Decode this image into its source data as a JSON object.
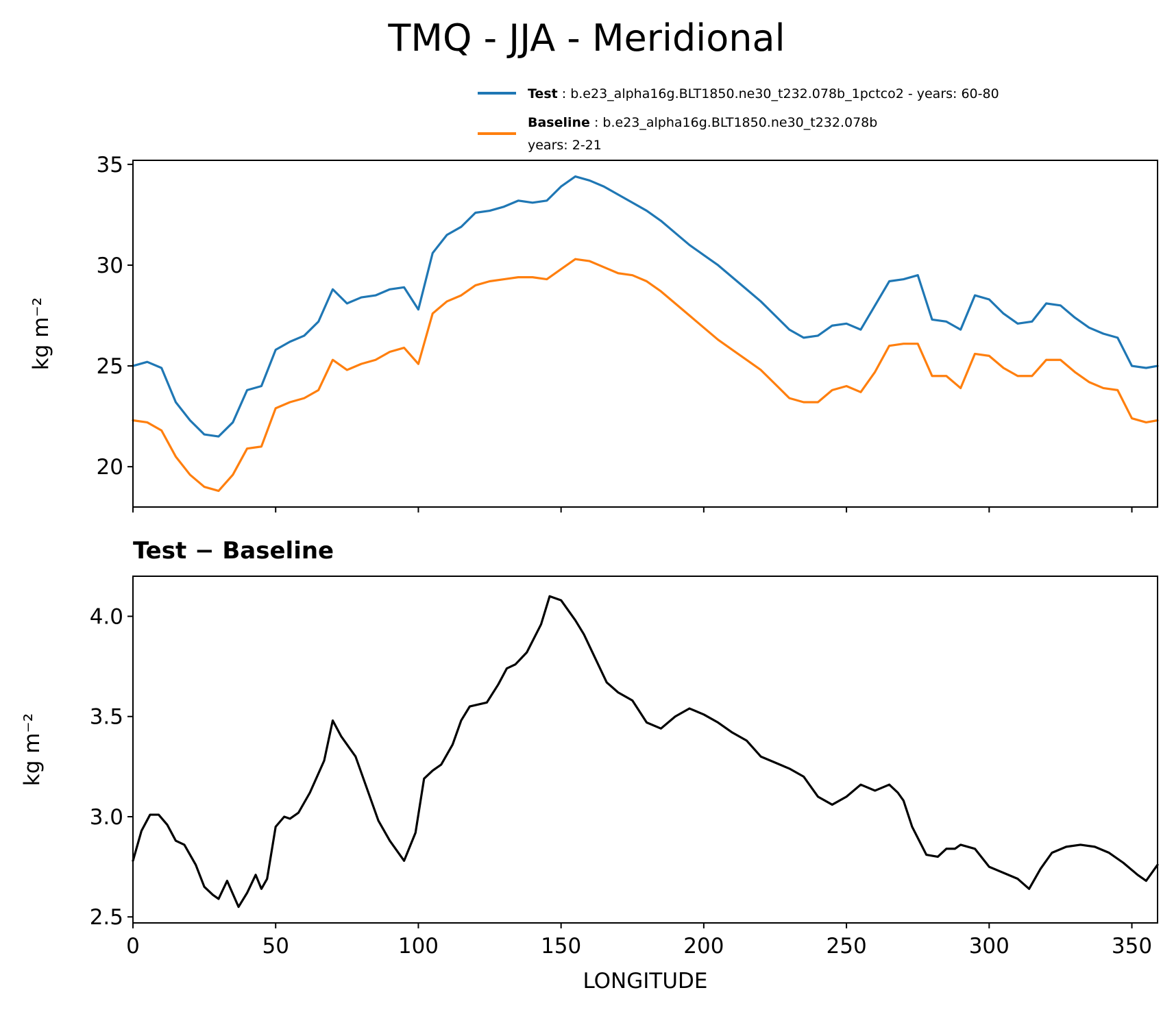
{
  "chart_data": [
    {
      "type": "line",
      "title": "TMQ - JJA - Meridional",
      "ylabel": "kg m⁻²",
      "xlim": [
        0,
        359
      ],
      "ylim": [
        18,
        35.2
      ],
      "yticks": [
        20,
        25,
        30,
        35
      ],
      "xticks": [
        0,
        50,
        100,
        150,
        200,
        250,
        300,
        350
      ],
      "x": [
        0,
        5,
        10,
        15,
        20,
        25,
        30,
        35,
        40,
        45,
        50,
        55,
        60,
        65,
        70,
        75,
        80,
        85,
        90,
        95,
        100,
        105,
        110,
        115,
        120,
        125,
        130,
        135,
        140,
        145,
        150,
        155,
        160,
        165,
        170,
        175,
        180,
        185,
        190,
        195,
        200,
        205,
        210,
        215,
        220,
        225,
        230,
        235,
        240,
        245,
        250,
        255,
        260,
        265,
        270,
        275,
        280,
        285,
        290,
        295,
        300,
        305,
        310,
        315,
        320,
        325,
        330,
        335,
        340,
        345,
        350,
        355,
        359
      ],
      "series": [
        {
          "name": "Test",
          "legend_label": "b.e23_alpha16g.BLT1850.ne30_t232.078b_1pctco2 - years: 60-80",
          "color": "#1f77b4",
          "values": [
            25.0,
            25.2,
            24.9,
            23.2,
            22.3,
            21.6,
            21.5,
            22.2,
            23.8,
            24.0,
            25.8,
            26.2,
            26.5,
            27.2,
            28.8,
            28.1,
            28.4,
            28.5,
            28.8,
            28.9,
            27.8,
            30.6,
            31.5,
            31.9,
            32.6,
            32.7,
            32.9,
            33.2,
            33.1,
            33.2,
            33.9,
            34.4,
            34.2,
            33.9,
            33.5,
            33.1,
            32.7,
            32.2,
            31.6,
            31.0,
            30.5,
            30.0,
            29.4,
            28.8,
            28.2,
            27.5,
            26.8,
            26.4,
            26.5,
            27.0,
            27.1,
            26.8,
            28.0,
            29.2,
            29.3,
            29.5,
            27.3,
            27.2,
            26.8,
            28.5,
            28.3,
            27.6,
            27.1,
            27.2,
            28.1,
            28.0,
            27.4,
            26.9,
            26.6,
            26.4,
            25.0,
            24.9,
            25.0
          ]
        },
        {
          "name": "Baseline",
          "legend_label": "b.e23_alpha16g.BLT1850.ne30_t232.078b",
          "legend_sublabel": "years: 2-21",
          "color": "#ff7f0e",
          "values": [
            22.3,
            22.2,
            21.8,
            20.5,
            19.6,
            19.0,
            18.8,
            19.6,
            20.9,
            21.0,
            22.9,
            23.2,
            23.4,
            23.8,
            25.3,
            24.8,
            25.1,
            25.3,
            25.7,
            25.9,
            25.1,
            27.6,
            28.2,
            28.5,
            29.0,
            29.2,
            29.3,
            29.4,
            29.4,
            29.3,
            29.8,
            30.3,
            30.2,
            29.9,
            29.6,
            29.5,
            29.2,
            28.7,
            28.1,
            27.5,
            26.9,
            26.3,
            25.8,
            25.3,
            24.8,
            24.1,
            23.4,
            23.2,
            23.2,
            23.8,
            24.0,
            23.7,
            24.7,
            26.0,
            26.1,
            26.1,
            24.5,
            24.5,
            23.9,
            25.6,
            25.5,
            24.9,
            24.5,
            24.5,
            25.3,
            25.3,
            24.7,
            24.2,
            23.9,
            23.8,
            22.4,
            22.2,
            22.3
          ]
        }
      ]
    },
    {
      "type": "line",
      "title": "Test − Baseline",
      "ylabel": "kg m⁻²",
      "xlabel": "LONGITUDE",
      "xlim": [
        0,
        359
      ],
      "ylim": [
        2.47,
        4.2
      ],
      "yticks": [
        "2.5",
        "3.0",
        "3.5",
        "4.0"
      ],
      "ytick_values": [
        2.5,
        3.0,
        3.5,
        4.0
      ],
      "xticks": [
        0,
        50,
        100,
        150,
        200,
        250,
        300,
        350
      ],
      "x": [
        0,
        3,
        6,
        9,
        12,
        15,
        18,
        22,
        25,
        28,
        30,
        33,
        37,
        40,
        43,
        45,
        47,
        50,
        53,
        55,
        58,
        62,
        67,
        70,
        73,
        76,
        78,
        80,
        83,
        86,
        90,
        95,
        99,
        102,
        105,
        108,
        112,
        115,
        118,
        121,
        124,
        128,
        131,
        134,
        138,
        143,
        146,
        150,
        155,
        158,
        162,
        166,
        170,
        175,
        180,
        185,
        190,
        195,
        200,
        205,
        210,
        215,
        220,
        225,
        230,
        235,
        240,
        245,
        250,
        255,
        260,
        265,
        268,
        270,
        273,
        278,
        282,
        285,
        288,
        290,
        295,
        300,
        305,
        310,
        314,
        318,
        322,
        327,
        332,
        337,
        342,
        347,
        352,
        355,
        359
      ],
      "series": [
        {
          "name": "Test − Baseline",
          "color": "#000000",
          "values": [
            2.78,
            2.93,
            3.01,
            3.01,
            2.96,
            2.88,
            2.86,
            2.76,
            2.65,
            2.61,
            2.59,
            2.68,
            2.55,
            2.62,
            2.71,
            2.64,
            2.69,
            2.95,
            3.0,
            2.99,
            3.02,
            3.12,
            3.28,
            3.48,
            3.4,
            3.34,
            3.3,
            3.22,
            3.1,
            2.98,
            2.88,
            2.78,
            2.92,
            3.19,
            3.23,
            3.26,
            3.36,
            3.48,
            3.55,
            3.56,
            3.57,
            3.66,
            3.74,
            3.76,
            3.82,
            3.96,
            4.1,
            4.08,
            3.98,
            3.91,
            3.79,
            3.67,
            3.62,
            3.58,
            3.47,
            3.44,
            3.5,
            3.54,
            3.51,
            3.47,
            3.42,
            3.38,
            3.3,
            3.27,
            3.24,
            3.2,
            3.1,
            3.06,
            3.1,
            3.16,
            3.13,
            3.16,
            3.12,
            3.08,
            2.95,
            2.81,
            2.8,
            2.84,
            2.84,
            2.86,
            2.84,
            2.75,
            2.72,
            2.69,
            2.64,
            2.74,
            2.82,
            2.85,
            2.86,
            2.85,
            2.82,
            2.77,
            2.71,
            2.68,
            2.76
          ]
        }
      ]
    }
  ]
}
